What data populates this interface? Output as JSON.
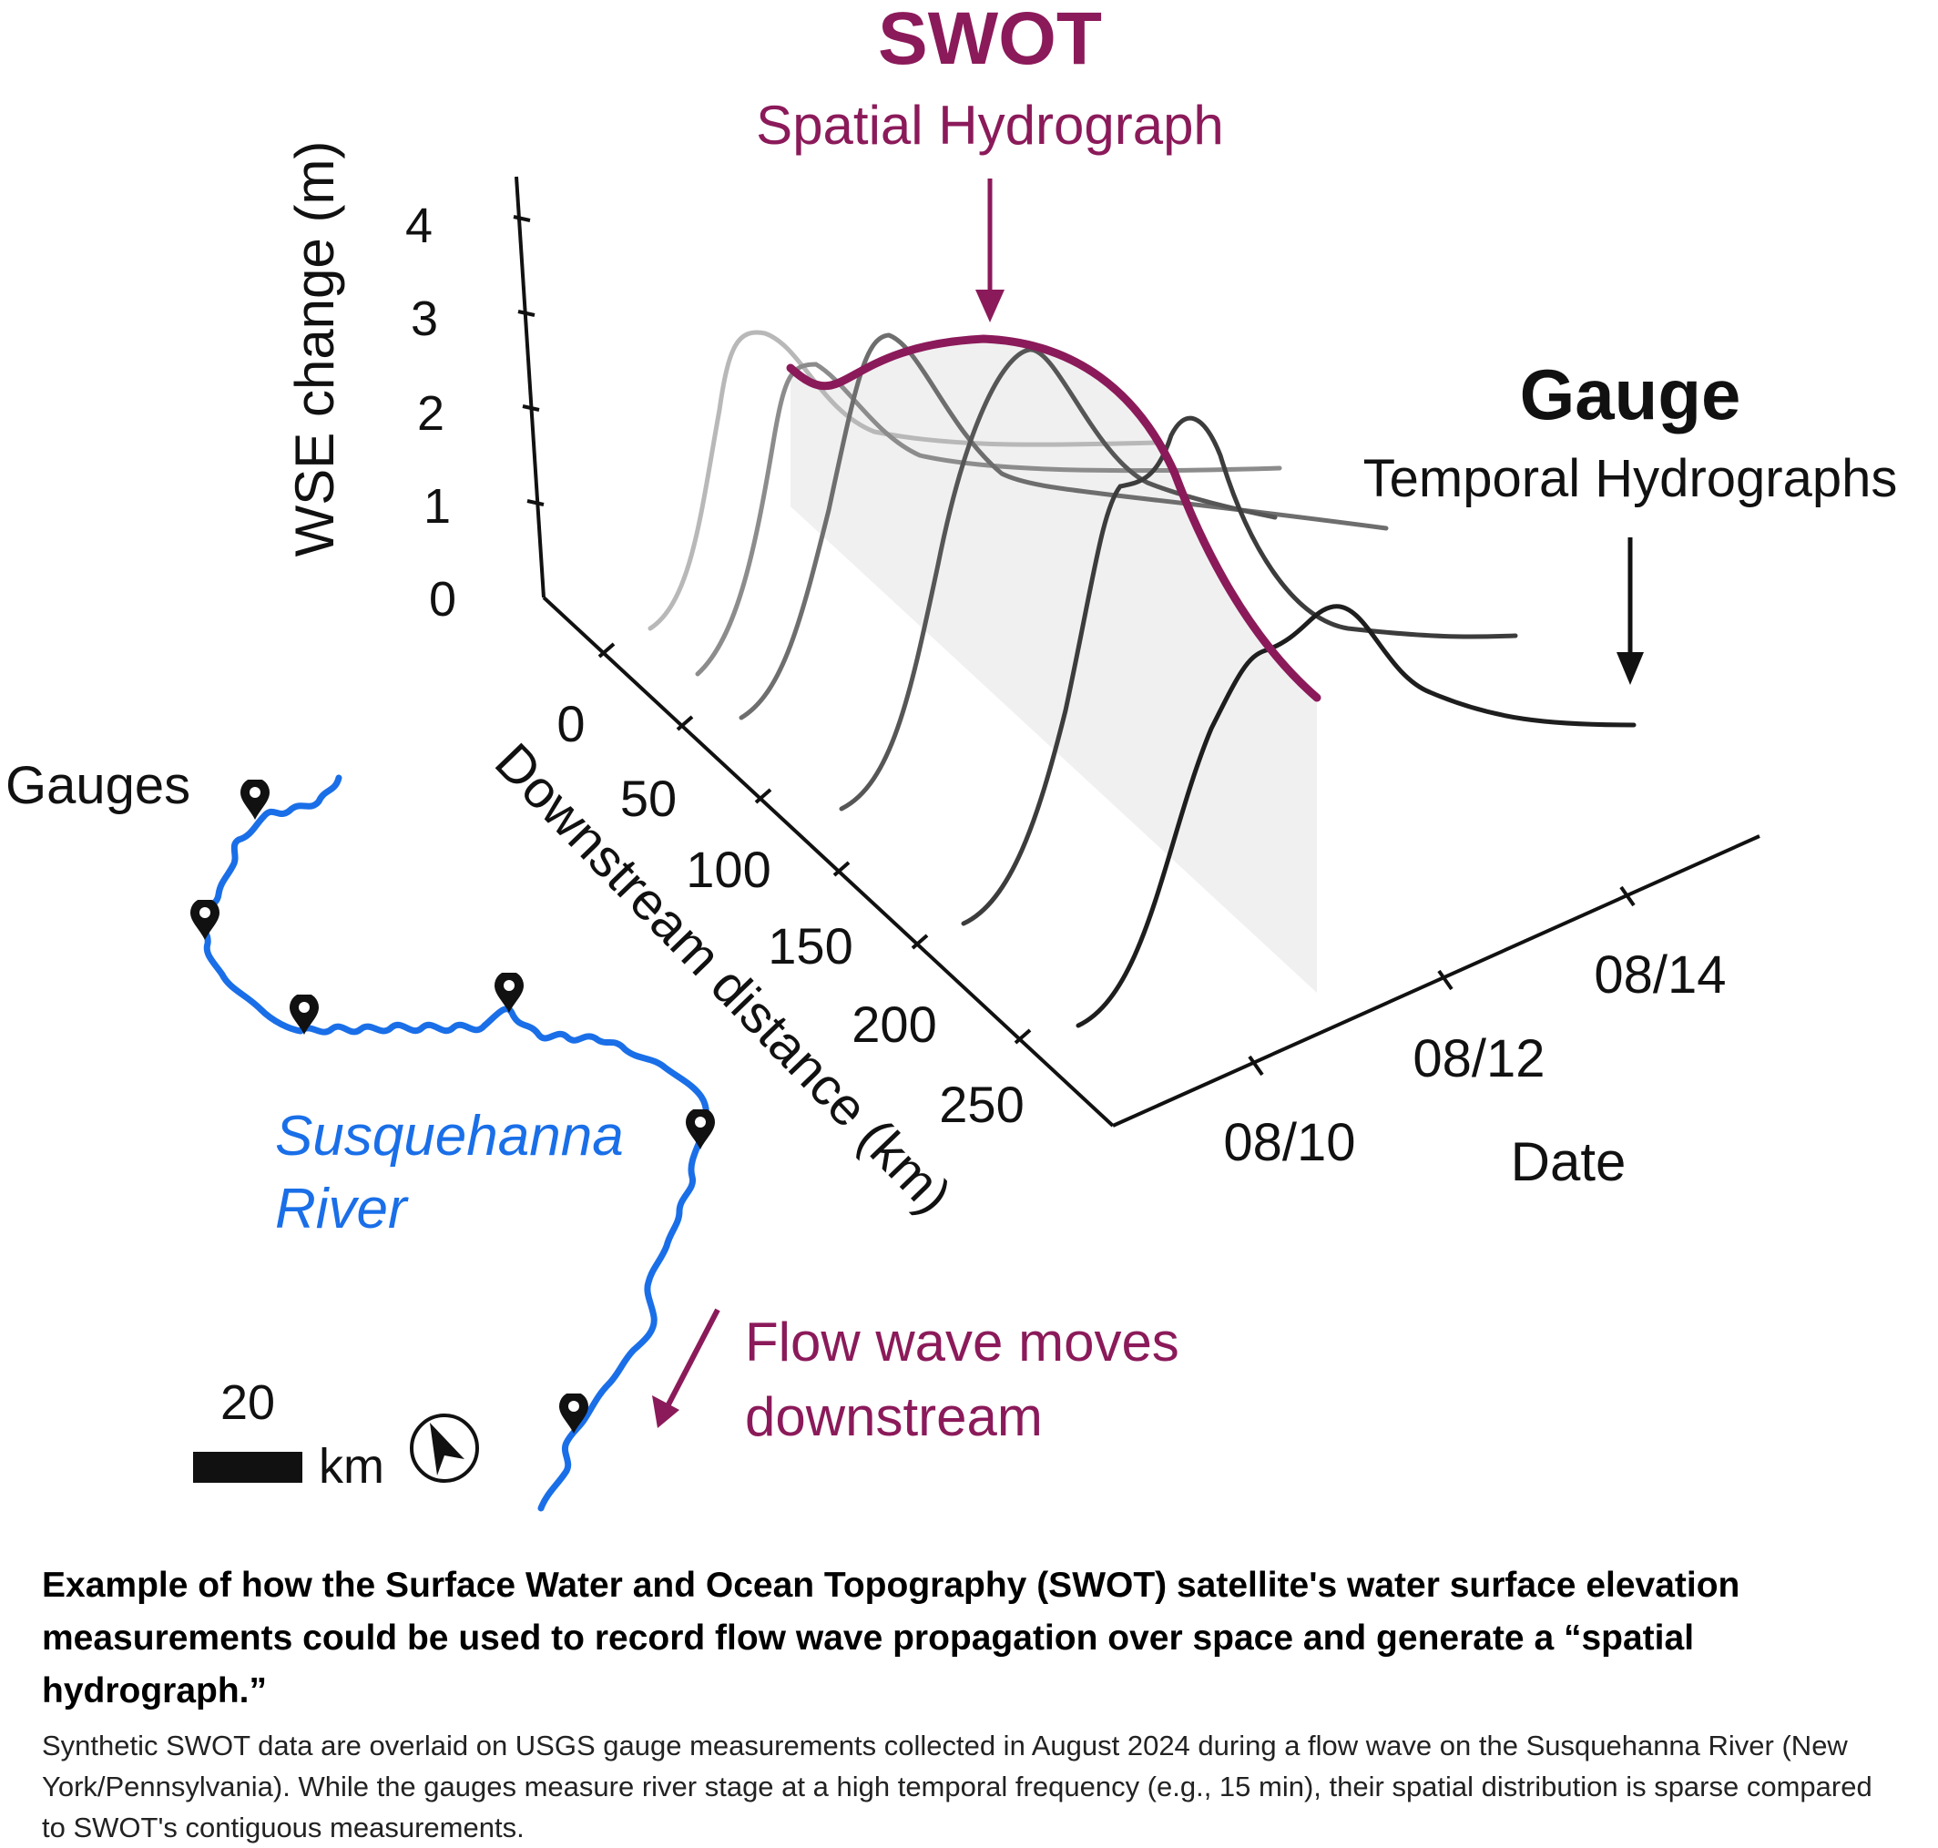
{
  "swot": {
    "title": "SWOT",
    "subtitle": "Spatial Hydrograph"
  },
  "gauge": {
    "title": "Gauge",
    "subtitle": "Temporal Hydrographs"
  },
  "axes": {
    "z_label": "WSE change (m)",
    "z_ticks": [
      "0",
      "1",
      "2",
      "3",
      "4"
    ],
    "distance_label": "Downstream distance (km)",
    "distance_ticks": [
      "0",
      "50",
      "100",
      "150",
      "200",
      "250"
    ],
    "date_label": "Date",
    "date_ticks": [
      "08/10",
      "08/12",
      "08/14"
    ]
  },
  "map": {
    "gauges_label": "Gauges",
    "river_name_line1": "Susquehanna",
    "river_name_line2": "River",
    "scale_value": "20",
    "scale_unit": "km",
    "flow_label_line1": "Flow wave moves",
    "flow_label_line2": "downstream"
  },
  "colors": {
    "swot": "#8b1a5a",
    "river": "#1a6fe8",
    "gauge_lines": "#2a2a2a",
    "plane": "#f0f0f0"
  },
  "icons": {
    "gauge_marker": "map-pin-icon",
    "north_arrow": "north-arrow-icon"
  },
  "caption": {
    "title": "Example of how the Surface Water and Ocean Topography (SWOT) satellite's water surface elevation measurements could be used to record flow wave propagation over space and generate a “spatial hydrograph.”",
    "body": "Synthetic SWOT data are overlaid on USGS gauge measurements collected in August 2024 during a flow wave on the Susquehanna River (New York/Pennsylvania). While the gauges measure river stage at a high temporal frequency (e.g., 15 min), their spatial distribution is sparse compared to SWOT's contiguous measurements."
  }
}
